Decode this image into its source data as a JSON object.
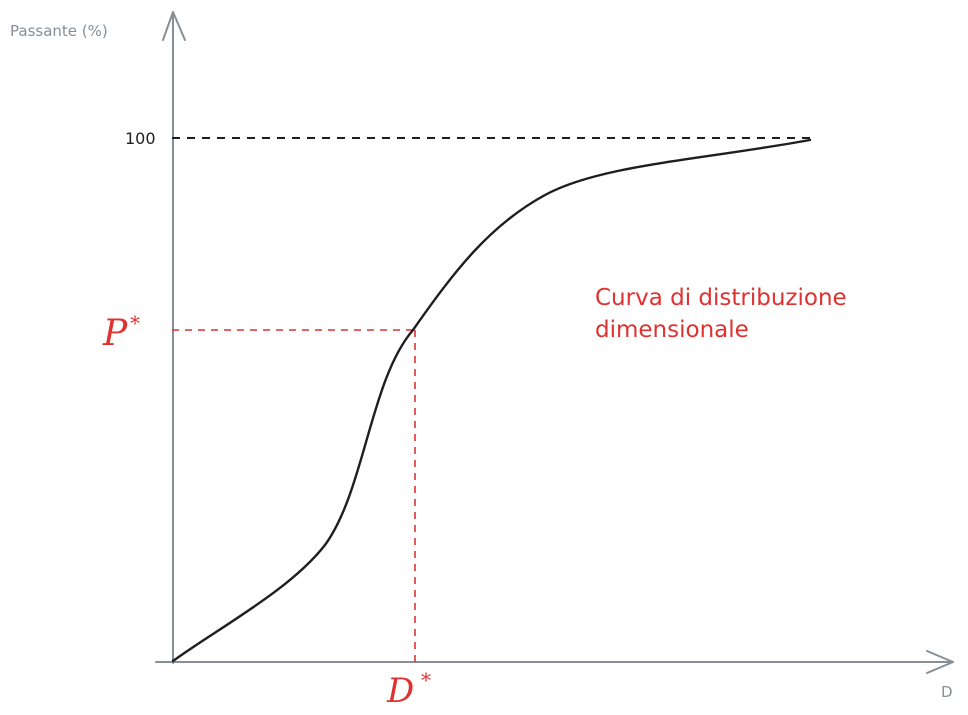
{
  "axes": {
    "y_label": "Passante (%)",
    "x_label": "D",
    "tick_100": "100"
  },
  "marks": {
    "p_star": "P",
    "d_star": "D",
    "star": "*"
  },
  "annotation": {
    "line1": "Curva di distribuzione",
    "line2": "dimensionale"
  },
  "colors": {
    "axis": "#868e96",
    "curve": "#1e1e1e",
    "guide": "#e03131",
    "dashed_100": "#1e1e1e"
  }
}
